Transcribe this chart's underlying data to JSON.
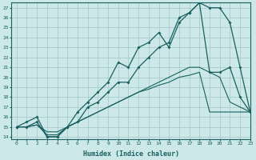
{
  "xlabel": "Humidex (Indice chaleur)",
  "background_color": "#cce8e8",
  "grid_color": "#aacccc",
  "line_color": "#1a6060",
  "x_values": [
    0,
    1,
    2,
    3,
    4,
    5,
    6,
    7,
    8,
    9,
    10,
    11,
    12,
    13,
    14,
    15,
    16,
    17,
    18,
    19,
    20,
    21,
    22,
    23
  ],
  "line1_y": [
    15.0,
    15.5,
    16.0,
    14.0,
    14.0,
    15.0,
    16.5,
    17.5,
    18.5,
    19.5,
    21.5,
    21.0,
    23.0,
    23.5,
    24.5,
    23.0,
    25.5,
    26.5,
    27.5,
    27.0,
    27.0,
    25.5,
    21.0,
    16.5
  ],
  "line2_y": [
    15.0,
    15.0,
    15.5,
    14.0,
    14.0,
    15.0,
    15.5,
    17.0,
    17.5,
    18.5,
    19.5,
    19.5,
    21.0,
    22.0,
    23.0,
    23.5,
    26.0,
    26.5,
    27.5,
    20.5,
    20.5,
    21.0,
    18.0,
    16.5
  ],
  "line3_y": [
    15.0,
    15.0,
    15.2,
    14.5,
    14.5,
    15.0,
    15.5,
    16.0,
    16.5,
    17.0,
    17.5,
    18.0,
    18.5,
    19.0,
    19.5,
    20.0,
    20.5,
    21.0,
    21.0,
    20.5,
    20.0,
    17.5,
    17.0,
    16.5
  ],
  "line4_y": [
    15.0,
    15.0,
    15.2,
    14.2,
    14.2,
    15.0,
    15.5,
    16.0,
    16.5,
    17.0,
    17.5,
    18.0,
    18.5,
    18.8,
    19.2,
    19.5,
    20.0,
    20.2,
    20.5,
    16.5,
    16.5,
    16.5,
    16.5,
    16.5
  ],
  "ylim_min": 14,
  "ylim_max": 27,
  "xlim_min": -0.5,
  "xlim_max": 23
}
